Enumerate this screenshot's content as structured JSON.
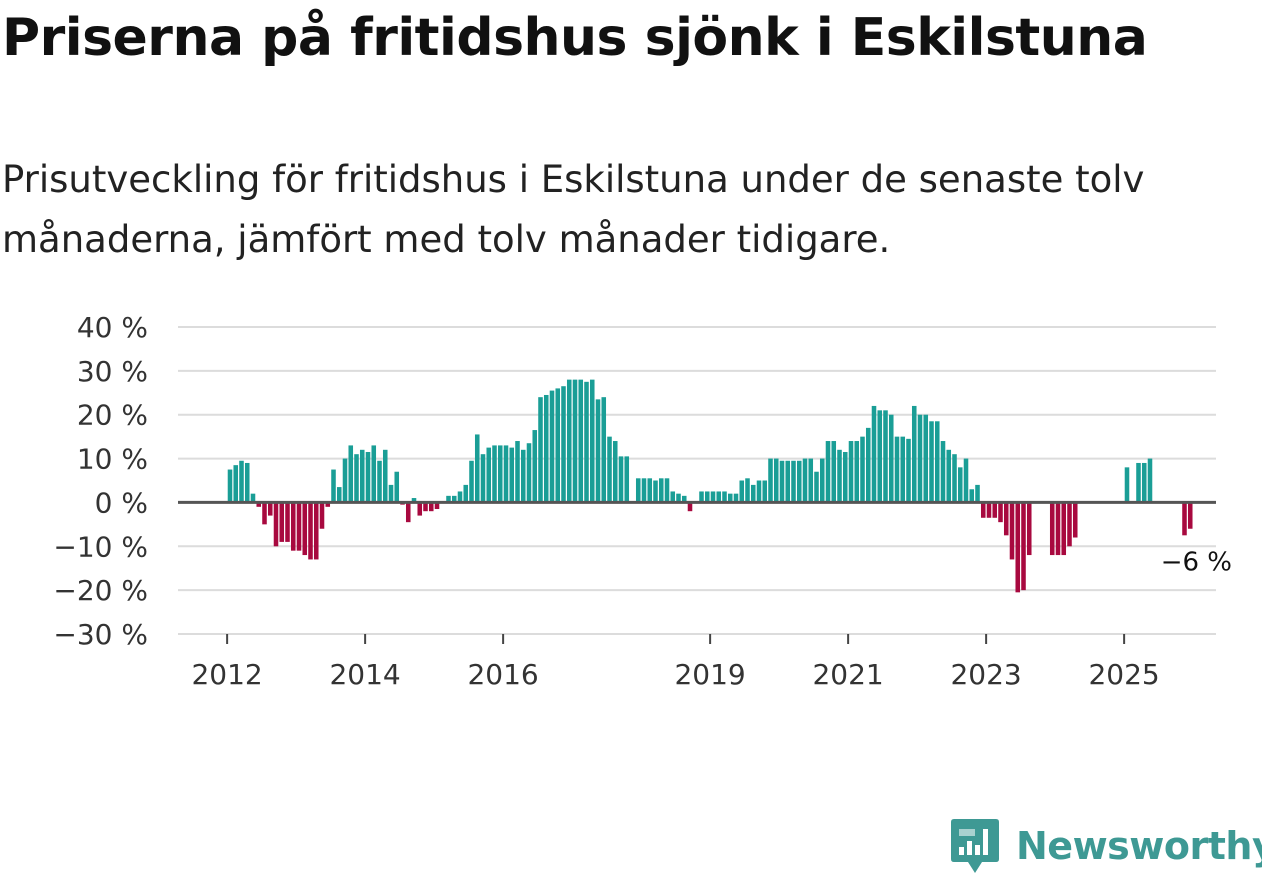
{
  "title": "Priserna på fritidshus sjönk i Eskilstuna",
  "subtitle": "Prisutveckling för fritidshus i Eskilstuna under de senaste tolv månaderna, jämfört med tolv månader tidigare.",
  "brand": {
    "name": "Newsworthy",
    "icon": "newsworthy-logo-icon"
  },
  "colors": {
    "positive": "#1a9e96",
    "negative": "#a8093f",
    "grid": "#dcdcdc",
    "zero_line": "#555555",
    "brand": "#3e9994"
  },
  "chart_data": {
    "type": "bar",
    "title": "Priserna på fritidshus sjönk i Eskilstuna",
    "xlabel": "",
    "ylabel": "",
    "ylim": [
      -30,
      40
    ],
    "yticks": [
      40,
      30,
      20,
      10,
      0,
      -10,
      -20,
      -30
    ],
    "ytick_labels": [
      "40 %",
      "30 %",
      "20 %",
      "10 %",
      "0 %",
      "−10 %",
      "−20 %",
      "−30 %"
    ],
    "xticks": [
      "2012",
      "2014",
      "2016",
      "2019",
      "2021",
      "2023",
      "2025"
    ],
    "xtick_months": [
      0,
      24,
      48,
      84,
      108,
      132,
      156
    ],
    "series": [
      {
        "name": "Prisutveckling",
        "start": "2011-12",
        "frequency": "monthly",
        "values": [
          7.5,
          8.5,
          9.5,
          9,
          2,
          -1,
          -5,
          -3,
          -10,
          -9,
          -9,
          -11,
          -11,
          -12,
          -13,
          -13,
          -6,
          -1,
          7.5,
          3.5,
          10,
          13,
          11,
          12,
          11.5,
          13,
          9.5,
          12,
          4,
          7,
          -0.5,
          -4.5,
          1,
          -3,
          -2,
          -2,
          -1.5,
          null,
          1.5,
          1.5,
          2.5,
          4,
          9.5,
          15.5,
          11,
          12.5,
          13,
          13,
          13,
          12.5,
          14,
          12,
          13.5,
          16.5,
          24,
          24.5,
          25.5,
          26,
          26.5,
          28,
          28,
          28,
          27.5,
          28,
          23.5,
          24,
          15,
          14,
          10.5,
          10.5,
          null,
          5.5,
          5.5,
          5.5,
          5,
          5.5,
          5.5,
          2.5,
          2,
          1.5,
          -2,
          null,
          2.5,
          2.5,
          2.5,
          2.5,
          2.5,
          2,
          2,
          5,
          5.5,
          4,
          5,
          5,
          10,
          10,
          9.5,
          9.5,
          9.5,
          9.5,
          10,
          10,
          7,
          10,
          14,
          14,
          12,
          11.5,
          14,
          14,
          15,
          17,
          22,
          21,
          21,
          20,
          15,
          15,
          14.5,
          22,
          20,
          20,
          18.5,
          18.5,
          14,
          12,
          11,
          8,
          10,
          3,
          4,
          -3.5,
          -3.5,
          -3.5,
          -4.5,
          -7.5,
          -13,
          -20.5,
          -20,
          -12,
          null,
          null,
          null,
          -12,
          -12,
          -12,
          -10,
          -8,
          null,
          null,
          null,
          null,
          null,
          null,
          null,
          null,
          8,
          null,
          9,
          9,
          10,
          null,
          null,
          null,
          null,
          null,
          -7.5,
          -6
        ]
      }
    ],
    "annotations": [
      {
        "label": "−6 %",
        "month_index": 168,
        "value": -6
      }
    ]
  }
}
